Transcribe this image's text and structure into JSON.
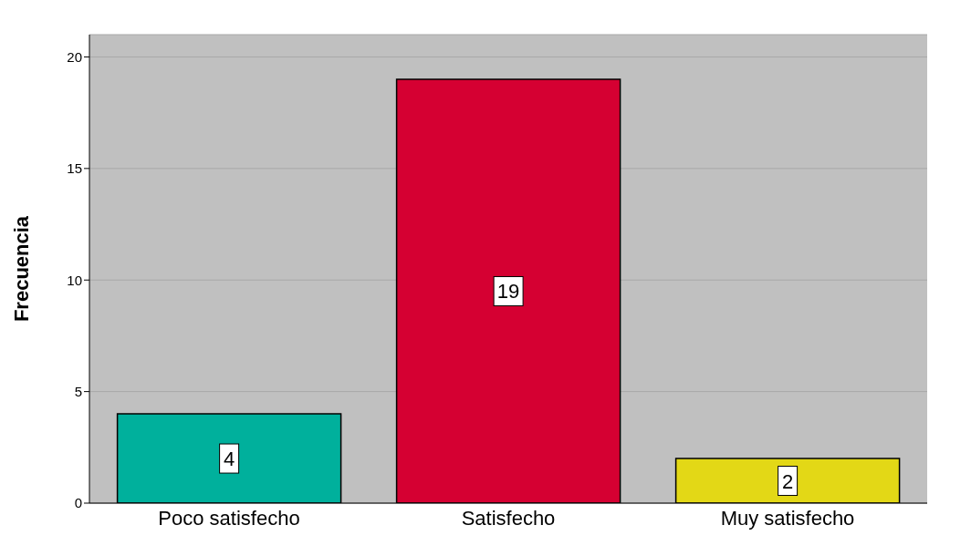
{
  "chart_data": {
    "type": "bar",
    "ylabel": "Frecuencia",
    "categories": [
      "Poco satisfecho",
      "Satisfecho",
      "Muy satisfecho"
    ],
    "values": [
      4,
      19,
      2
    ],
    "colors": [
      "#00b09c",
      "#d50032",
      "#e3d816"
    ],
    "ylim": [
      0,
      21
    ],
    "yticks": [
      0,
      5,
      10,
      15,
      20
    ],
    "grid": "y",
    "data_labels": true
  }
}
